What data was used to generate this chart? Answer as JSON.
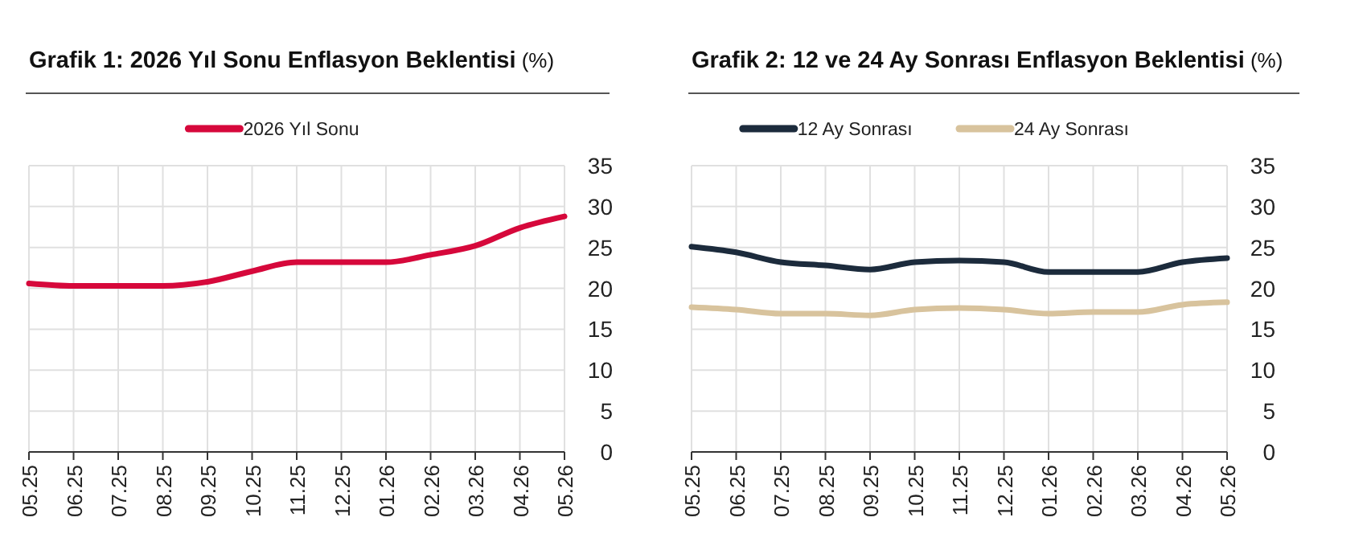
{
  "chart_data": [
    {
      "type": "line",
      "title": "Grafik 1: 2026 Yıl Sonu Enflasyon Beklentisi",
      "subtitle": "(%)",
      "categories": [
        "05.25",
        "06.25",
        "07.25",
        "08.25",
        "09.25",
        "10.25",
        "11.25",
        "12.25",
        "01.26",
        "02.26",
        "03.26",
        "04.26",
        "05.26"
      ],
      "series": [
        {
          "name": "2026 Yıl Sonu",
          "color": "#d6083b",
          "values": [
            20.6,
            20.3,
            20.3,
            20.3,
            20.8,
            22.1,
            23.2,
            23.2,
            23.2,
            24.1,
            25.2,
            27.4,
            28.8
          ]
        }
      ],
      "ylim": [
        0,
        35
      ],
      "yticks": [
        0,
        5,
        10,
        15,
        20,
        25,
        30,
        35
      ],
      "grid": true,
      "legend": "top",
      "marker": "none",
      "line_style": "solid"
    },
    {
      "type": "line",
      "title": "Grafik 2: 12 ve 24 Ay Sonrası Enflasyon Beklentisi",
      "subtitle": "(%)",
      "categories": [
        "05.25",
        "06.25",
        "07.25",
        "08.25",
        "09.25",
        "10.25",
        "11.25",
        "12.25",
        "01.26",
        "02.26",
        "03.26",
        "04.26",
        "05.26"
      ],
      "series": [
        {
          "name": "12 Ay Sonrası",
          "color": "#1c2b3c",
          "values": [
            25.1,
            24.4,
            23.2,
            22.8,
            22.3,
            23.2,
            23.4,
            23.2,
            22.0,
            22.0,
            22.0,
            23.2,
            23.7
          ]
        },
        {
          "name": "24 Ay Sonrası",
          "color": "#d8c39d",
          "values": [
            17.7,
            17.4,
            16.9,
            16.9,
            16.7,
            17.4,
            17.6,
            17.4,
            16.9,
            17.1,
            17.1,
            18.0,
            18.3
          ]
        }
      ],
      "ylim": [
        0,
        35
      ],
      "yticks": [
        0,
        5,
        10,
        15,
        20,
        25,
        30,
        35
      ],
      "grid": true,
      "legend": "top",
      "marker": "none",
      "line_style": "solid"
    }
  ]
}
